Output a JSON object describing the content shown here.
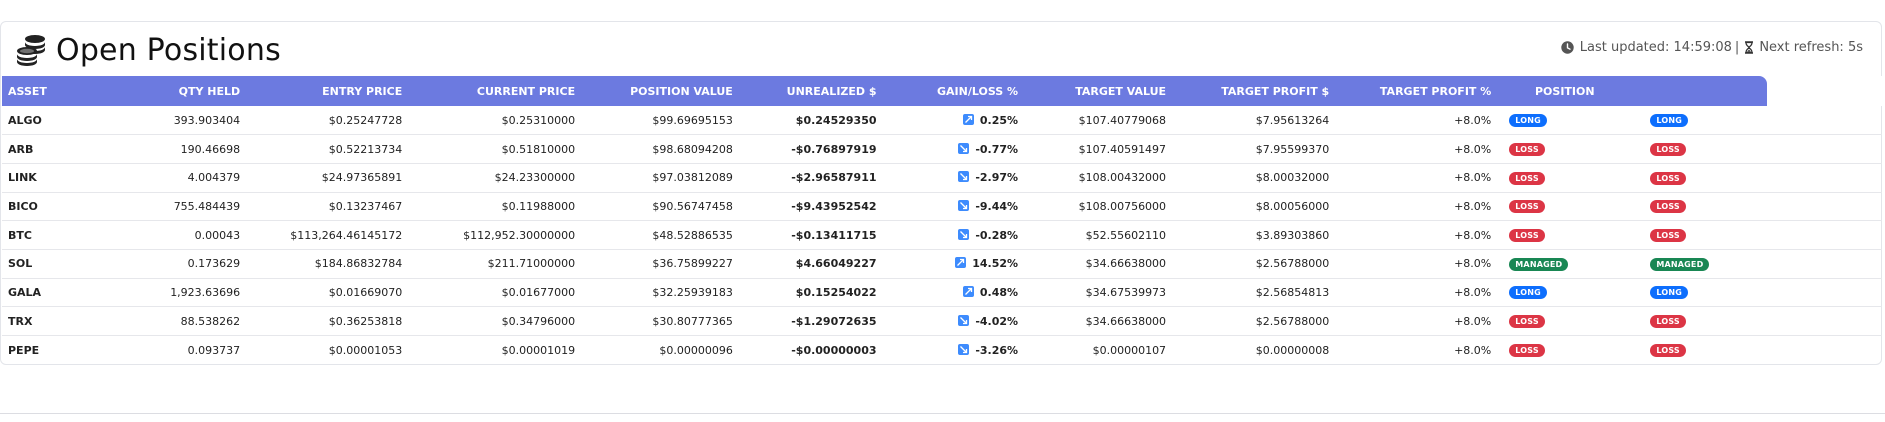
{
  "header": {
    "title": "Open Positions",
    "last_updated_label": "Last updated: 14:59:08",
    "separator": "|",
    "next_refresh_label": "Next refresh: 5s"
  },
  "table": {
    "columns": [
      "ASSET",
      "QTY HELD",
      "ENTRY PRICE",
      "CURRENT PRICE",
      "POSITION VALUE",
      "UNREALIZED $",
      "GAIN/LOSS %",
      "TARGET VALUE",
      "TARGET PROFIT $",
      "TARGET PROFIT %",
      "POSITION"
    ],
    "rows": [
      {
        "asset": "ALGO",
        "qty": "393.903404",
        "entry": "$0.25247728",
        "current": "$0.25310000",
        "value": "$99.69695153",
        "unrealized": "$0.24529350",
        "gain": "0.25%",
        "direction": "up",
        "target_value": "$107.40779068",
        "target_profit": "$7.95613264",
        "target_pct": "+8.0%",
        "badge": "LONG",
        "badge_type": "long"
      },
      {
        "asset": "ARB",
        "qty": "190.46698",
        "entry": "$0.52213734",
        "current": "$0.51810000",
        "value": "$98.68094208",
        "unrealized": "-$0.76897919",
        "gain": "-0.77%",
        "direction": "down",
        "target_value": "$107.40591497",
        "target_profit": "$7.95599370",
        "target_pct": "+8.0%",
        "badge": "LOSS",
        "badge_type": "loss"
      },
      {
        "asset": "LINK",
        "qty": "4.004379",
        "entry": "$24.97365891",
        "current": "$24.23300000",
        "value": "$97.03812089",
        "unrealized": "-$2.96587911",
        "gain": "-2.97%",
        "direction": "down",
        "target_value": "$108.00432000",
        "target_profit": "$8.00032000",
        "target_pct": "+8.0%",
        "badge": "LOSS",
        "badge_type": "loss"
      },
      {
        "asset": "BICO",
        "qty": "755.484439",
        "entry": "$0.13237467",
        "current": "$0.11988000",
        "value": "$90.56747458",
        "unrealized": "-$9.43952542",
        "gain": "-9.44%",
        "direction": "down",
        "target_value": "$108.00756000",
        "target_profit": "$8.00056000",
        "target_pct": "+8.0%",
        "badge": "LOSS",
        "badge_type": "loss"
      },
      {
        "asset": "BTC",
        "qty": "0.00043",
        "entry": "$113,264.46145172",
        "current": "$112,952.30000000",
        "value": "$48.52886535",
        "unrealized": "-$0.13411715",
        "gain": "-0.28%",
        "direction": "down",
        "target_value": "$52.55602110",
        "target_profit": "$3.89303860",
        "target_pct": "+8.0%",
        "badge": "LOSS",
        "badge_type": "loss"
      },
      {
        "asset": "SOL",
        "qty": "0.173629",
        "entry": "$184.86832784",
        "current": "$211.71000000",
        "value": "$36.75899227",
        "unrealized": "$4.66049227",
        "gain": "14.52%",
        "direction": "up",
        "target_value": "$34.66638000",
        "target_profit": "$2.56788000",
        "target_pct": "+8.0%",
        "badge": "MANAGED",
        "badge_type": "managed"
      },
      {
        "asset": "GALA",
        "qty": "1,923.63696",
        "entry": "$0.01669070",
        "current": "$0.01677000",
        "value": "$32.25939183",
        "unrealized": "$0.15254022",
        "gain": "0.48%",
        "direction": "up",
        "target_value": "$34.67539973",
        "target_profit": "$2.56854813",
        "target_pct": "+8.0%",
        "badge": "LONG",
        "badge_type": "long"
      },
      {
        "asset": "TRX",
        "qty": "88.538262",
        "entry": "$0.36253818",
        "current": "$0.34796000",
        "value": "$30.80777365",
        "unrealized": "-$1.29072635",
        "gain": "-4.02%",
        "direction": "down",
        "target_value": "$34.66638000",
        "target_profit": "$2.56788000",
        "target_pct": "+8.0%",
        "badge": "LOSS",
        "badge_type": "loss"
      },
      {
        "asset": "PEPE",
        "qty": "0.093737",
        "entry": "$0.00001053",
        "current": "$0.00001019",
        "value": "$0.00000096",
        "unrealized": "-$0.00000003",
        "gain": "-3.26%",
        "direction": "down",
        "target_value": "$0.00000107",
        "target_profit": "$0.00000008",
        "target_pct": "+8.0%",
        "badge": "LOSS",
        "badge_type": "loss"
      }
    ]
  },
  "colors": {
    "header_bg": "#6c7ae0",
    "positive": "#28a745",
    "negative": "#dc3545",
    "badge_long": "#0d6efd",
    "badge_loss": "#dc3545",
    "badge_managed": "#198754",
    "trend_icon": "#3d8bfd"
  },
  "icons": {
    "title": "coins-icon",
    "last_updated": "clock-icon",
    "next_refresh": "hourglass-icon",
    "gain_up": "trend-up-icon",
    "gain_down": "trend-down-icon"
  }
}
